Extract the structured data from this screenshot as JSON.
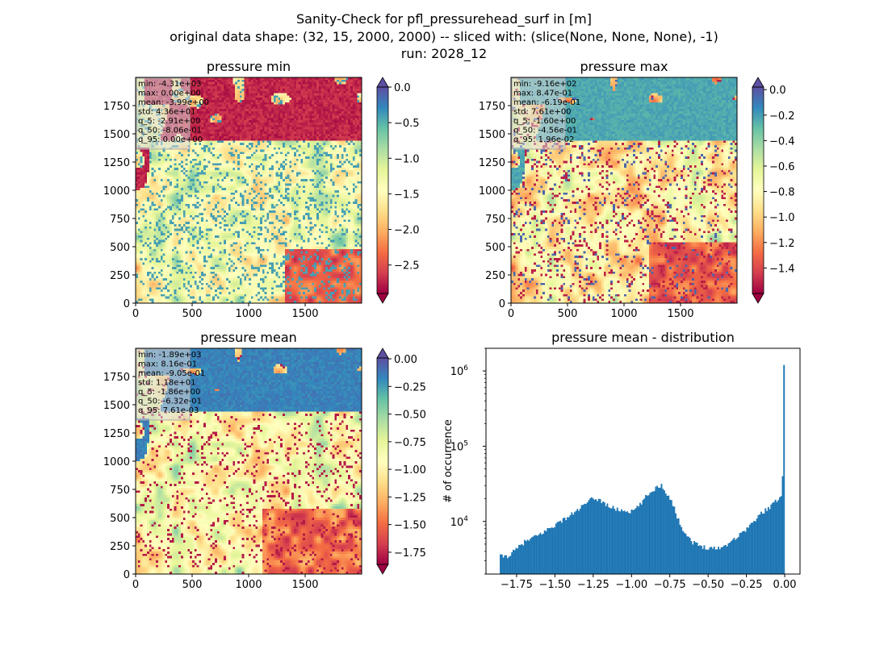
{
  "figure": {
    "title_lines": [
      "Sanity-Check for pfl_pressurehead_surf in [m]",
      "original data shape: (32, 15, 2000, 2000) -- sliced with: (slice(None, None, None), -1)",
      "run: 2028_12"
    ]
  },
  "colors": {
    "spectral": [
      "#9e0142",
      "#d53e4f",
      "#f46d43",
      "#fdae61",
      "#fee08b",
      "#ffffbf",
      "#e6f598",
      "#abdda4",
      "#66c2a5",
      "#3288bd",
      "#5e4fa2"
    ],
    "hist_bar": "#1f77b4",
    "stats_box_bg": "#d9d9d9"
  },
  "chart_data": [
    {
      "type": "heatmap",
      "title": "pressure min",
      "x_ticks": [
        "0",
        "500",
        "1000",
        "1500"
      ],
      "y_ticks": [
        "0",
        "250",
        "500",
        "750",
        "1000",
        "1250",
        "1500",
        "1750"
      ],
      "xlim": [
        0,
        2000
      ],
      "ylim": [
        0,
        2000
      ],
      "colormap": "Spectral",
      "colorbar": {
        "range": [
          -2.9,
          0.0
        ],
        "ticks": [
          "0.0",
          "−0.5",
          "−1.0",
          "−1.5",
          "−2.0",
          "−2.5"
        ],
        "tick_values": [
          0.0,
          -0.5,
          -1.0,
          -1.5,
          -2.0,
          -2.5
        ],
        "extend": "both"
      },
      "stats": [
        "min: -4.31e+03",
        "max: 0.00e+00",
        "mean: -3.99e+00",
        "std: 4.36e+01",
        "q_5: -2.91e+00",
        "q_50: -8.06e-01",
        "q_95: 0.00e+00"
      ]
    },
    {
      "type": "heatmap",
      "title": "pressure max",
      "x_ticks": [
        "0",
        "500",
        "1000",
        "1500"
      ],
      "y_ticks": [
        "0",
        "250",
        "500",
        "750",
        "1000",
        "1250",
        "1500",
        "1750"
      ],
      "xlim": [
        0,
        2000
      ],
      "ylim": [
        0,
        2000
      ],
      "colormap": "Spectral",
      "colorbar": {
        "range": [
          -1.6,
          0.02
        ],
        "ticks": [
          "0.0",
          "−0.2",
          "−0.4",
          "−0.6",
          "−0.8",
          "−1.0",
          "−1.2",
          "−1.4"
        ],
        "tick_values": [
          0.0,
          -0.2,
          -0.4,
          -0.6,
          -0.8,
          -1.0,
          -1.2,
          -1.4
        ],
        "extend": "both"
      },
      "stats": [
        "min: -9.16e+02",
        "max: 8.47e-01",
        "mean: -6.19e-01",
        "std: 7.61e+00",
        "q_5: -1.60e+00",
        "q_50: -4.56e-01",
        "q_95: 1.96e-02"
      ]
    },
    {
      "type": "heatmap",
      "title": "pressure mean",
      "x_ticks": [
        "0",
        "500",
        "1000",
        "1500"
      ],
      "y_ticks": [
        "0",
        "250",
        "500",
        "750",
        "1000",
        "1250",
        "1500",
        "1750"
      ],
      "xlim": [
        0,
        2000
      ],
      "ylim": [
        0,
        2000
      ],
      "colormap": "Spectral",
      "colorbar": {
        "range": [
          -1.86,
          0.0076
        ],
        "ticks": [
          "0.00",
          "−0.25",
          "−0.50",
          "−0.75",
          "−1.00",
          "−1.25",
          "−1.50",
          "−1.75"
        ],
        "tick_values": [
          0.0,
          -0.25,
          -0.5,
          -0.75,
          -1.0,
          -1.25,
          -1.5,
          -1.75
        ],
        "extend": "both"
      },
      "stats": [
        "min: -1.89e+03",
        "max: 8.16e-01",
        "mean: -9.05e-01",
        "std: 1.18e+01",
        "q_5: -1.86e+00",
        "q_50: -6.32e-01",
        "q_95: 7.61e-03"
      ]
    },
    {
      "type": "bar",
      "title": "pressure mean - distribution",
      "ylabel": "# of occurrence",
      "xlabel": "",
      "yscale": "log",
      "x_ticks": [
        "−1.75",
        "−1.50",
        "−1.25",
        "−1.00",
        "−0.75",
        "−0.50",
        "−0.25",
        "0.00"
      ],
      "x_tick_values": [
        -1.75,
        -1.5,
        -1.25,
        -1.0,
        -0.75,
        -0.5,
        -0.25,
        0.0
      ],
      "y_ticks": [
        "10^4",
        "10^5",
        "10^6"
      ],
      "y_tick_values": [
        10000,
        100000,
        1000000
      ],
      "xlim": [
        -1.95,
        0.1
      ],
      "ylim": [
        2000,
        2000000
      ],
      "bin_range": [
        -1.86,
        0.0
      ],
      "bin_count": 200,
      "envelope_x": [
        -1.86,
        -1.85,
        -1.8,
        -1.75,
        -1.7,
        -1.6,
        -1.5,
        -1.4,
        -1.3,
        -1.25,
        -1.2,
        -1.15,
        -1.1,
        -1.0,
        -0.95,
        -0.9,
        -0.85,
        -0.82,
        -0.8,
        -0.78,
        -0.75,
        -0.72,
        -0.7,
        -0.65,
        -0.6,
        -0.55,
        -0.5,
        -0.45,
        -0.4,
        -0.35,
        -0.3,
        -0.25,
        -0.2,
        -0.15,
        -0.1,
        -0.05,
        -0.03,
        -0.02,
        -0.01,
        0.0
      ],
      "envelope_y": [
        3600,
        3400,
        3500,
        4300,
        5300,
        6700,
        9000,
        12000,
        17000,
        20500,
        19000,
        16000,
        14500,
        13500,
        16000,
        22000,
        27000,
        30000,
        30000,
        25000,
        21000,
        15000,
        11000,
        7000,
        5300,
        4700,
        4500,
        4400,
        4600,
        5500,
        6500,
        8000,
        10000,
        13000,
        15500,
        19000,
        21500,
        24000,
        40000,
        1200000
      ]
    }
  ]
}
